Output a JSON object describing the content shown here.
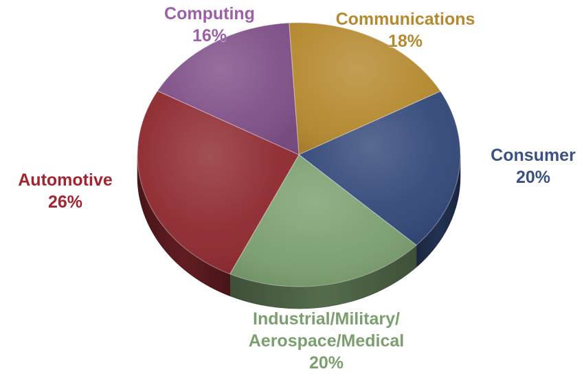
{
  "chart_data": {
    "type": "pie",
    "variant": "3d",
    "categories": [
      "Communications",
      "Consumer",
      "Industrial/Military/ Aerospace/Medical",
      "Automotive",
      "Computing"
    ],
    "values": [
      18,
      20,
      20,
      26,
      16
    ],
    "unit": "%",
    "series": [
      {
        "name": "Communications",
        "value": 18,
        "label_lines": [
          "Communications",
          "18%"
        ],
        "color": "#B5892F"
      },
      {
        "name": "Consumer",
        "value": 20,
        "label_lines": [
          "Consumer",
          "20%"
        ],
        "color": "#34497A"
      },
      {
        "name": "Industrial/Military/ Aerospace/Medical",
        "value": 20,
        "label_lines": [
          "Industrial/Military/",
          "Aerospace/Medical",
          "20%"
        ],
        "color": "#7B9F6F"
      },
      {
        "name": "Automotive",
        "value": 26,
        "label_lines": [
          "Automotive",
          "26%"
        ],
        "color": "#8E2A30"
      },
      {
        "name": "Computing",
        "value": 16,
        "label_lines": [
          "Computing",
          "16%"
        ],
        "color": "#7F5088"
      }
    ],
    "label_colors": {
      "Communications": "#B5892F",
      "Consumer": "#3C5183",
      "Industrial/Military/ Aerospace/Medical": "#7B9F6F",
      "Automotive": "#A3242E",
      "Computing": "#9B60A6"
    },
    "legend": "none"
  }
}
